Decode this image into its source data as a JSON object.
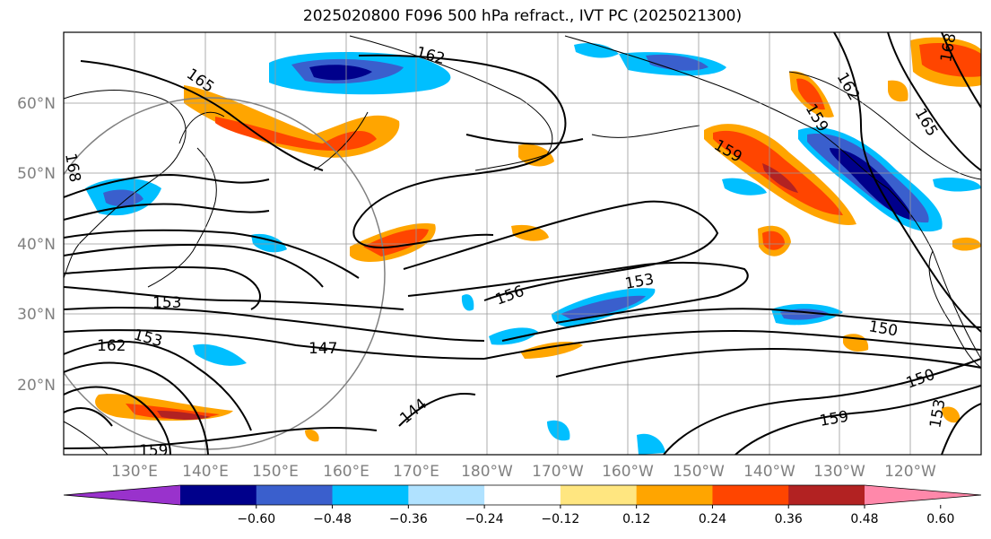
{
  "title": "2025020800 F096 500 hPa refract., IVT PC (2025021300)",
  "lon_labels": [
    "130°E",
    "140°E",
    "150°E",
    "160°E",
    "170°E",
    "180°W",
    "170°W",
    "160°W",
    "150°W",
    "140°W",
    "130°W",
    "120°W"
  ],
  "lat_labels": [
    "60°N",
    "50°N",
    "40°N",
    "30°N",
    "20°N"
  ],
  "colorbar": {
    "ticks": [
      "−0.60",
      "−0.48",
      "−0.36",
      "−0.24",
      "−0.12",
      "0.12",
      "0.24",
      "0.36",
      "0.48",
      "0.60"
    ],
    "colors": [
      "#9932cc",
      "#00008b",
      "#3a5fcd",
      "#00bfff",
      "#b0e2ff",
      "#ffffff",
      "#ffe680",
      "#ffa500",
      "#ff4500",
      "#b22222",
      "#ff88aa"
    ]
  },
  "contour_labels": [
    "165",
    "162",
    "162",
    "168",
    "168",
    "159",
    "165",
    "159",
    "156",
    "153",
    "153",
    "153",
    "153",
    "147",
    "150",
    "150",
    "144",
    "159",
    "159",
    "162"
  ],
  "fill_colors": {
    "neg_light": "#b0e2ff",
    "neg_mid": "#00bfff",
    "neg_dark": "#3a5fcd",
    "neg_deep": "#00008b",
    "pos_light": "#ffe680",
    "pos_mid": "#ffa500",
    "pos_dark": "#ff4500",
    "pos_deep": "#b22222"
  }
}
